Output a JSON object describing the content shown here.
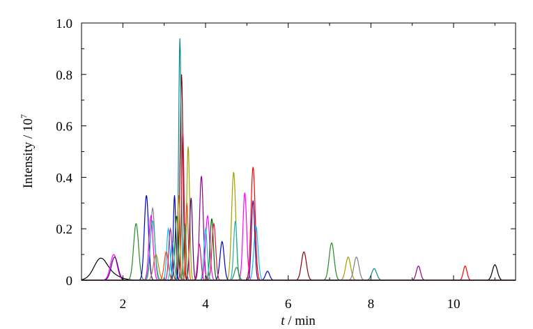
{
  "chart_data": {
    "type": "line",
    "xlabel_italic": "t",
    "xlabel_rest": " / min",
    "ylabel_base": "Intensity / 10",
    "ylabel_exp": "7",
    "xlim": [
      1.0,
      11.5
    ],
    "ylim": [
      0.0,
      1.0
    ],
    "x_ticks": [
      2,
      4,
      6,
      8,
      10
    ],
    "x_tick_labels": [
      "2",
      "4",
      "6",
      "8",
      "10"
    ],
    "y_ticks": [
      0.0,
      0.2,
      0.4,
      0.6,
      0.8,
      1.0
    ],
    "y_tick_labels": [
      "0",
      "0.2",
      "0.4",
      "0.6",
      "0.8",
      "1.0"
    ],
    "grid": false,
    "legend": "none",
    "series": [
      {
        "color": "#000000",
        "peaks": [
          [
            1.45,
            0.06,
            0.15
          ],
          [
            1.6,
            0.03,
            0.25
          ],
          [
            11.0,
            0.06,
            0.06
          ]
        ]
      },
      {
        "color": "#8b0000",
        "peaks": [
          [
            3.42,
            0.8,
            0.035
          ],
          [
            6.38,
            0.11,
            0.06
          ]
        ]
      },
      {
        "color": "#228b22",
        "peaks": [
          [
            2.32,
            0.22,
            0.06
          ],
          [
            7.05,
            0.145,
            0.06
          ]
        ]
      },
      {
        "color": "#ff0000",
        "peaks": [
          [
            5.15,
            0.44,
            0.05
          ],
          [
            10.28,
            0.055,
            0.045
          ]
        ]
      },
      {
        "color": "#a0a000",
        "peaks": [
          [
            3.58,
            0.52,
            0.035
          ],
          [
            4.68,
            0.42,
            0.05
          ],
          [
            7.45,
            0.09,
            0.06
          ]
        ]
      },
      {
        "color": "#808080",
        "peaks": [
          [
            2.72,
            0.28,
            0.05
          ],
          [
            7.65,
            0.09,
            0.06
          ]
        ]
      },
      {
        "color": "#008b8b",
        "peaks": [
          [
            3.38,
            0.94,
            0.03
          ],
          [
            8.08,
            0.045,
            0.06
          ]
        ]
      },
      {
        "color": "#8b008b",
        "peaks": [
          [
            3.9,
            0.405,
            0.045
          ],
          [
            9.15,
            0.055,
            0.05
          ]
        ]
      },
      {
        "color": "#0000cd",
        "peaks": [
          [
            2.57,
            0.33,
            0.05
          ],
          [
            3.25,
            0.33,
            0.03
          ],
          [
            4.4,
            0.15,
            0.05
          ],
          [
            5.5,
            0.035,
            0.05
          ]
        ]
      },
      {
        "color": "#ff00ff",
        "peaks": [
          [
            1.78,
            0.1,
            0.08
          ],
          [
            2.68,
            0.25,
            0.05
          ],
          [
            4.05,
            0.25,
            0.05
          ],
          [
            4.95,
            0.34,
            0.045
          ]
        ]
      },
      {
        "color": "#00bfff",
        "peaks": [
          [
            3.1,
            0.2,
            0.04
          ],
          [
            5.22,
            0.21,
            0.05
          ]
        ]
      },
      {
        "color": "#20b2aa",
        "peaks": [
          [
            2.72,
            0.23,
            0.06
          ],
          [
            4.72,
            0.23,
            0.04
          ]
        ]
      },
      {
        "color": "#006400",
        "peaks": [
          [
            3.3,
            0.25,
            0.04
          ],
          [
            4.15,
            0.24,
            0.04
          ]
        ]
      },
      {
        "color": "#dc143c",
        "peaks": [
          [
            3.45,
            0.58,
            0.03
          ],
          [
            4.2,
            0.22,
            0.045
          ]
        ]
      },
      {
        "color": "#4b0082",
        "peaks": [
          [
            1.8,
            0.09,
            0.08
          ],
          [
            3.65,
            0.32,
            0.035
          ],
          [
            5.15,
            0.31,
            0.04
          ]
        ]
      },
      {
        "color": "#b8860b",
        "peaks": [
          [
            2.8,
            0.1,
            0.06
          ],
          [
            3.35,
            0.33,
            0.03
          ]
        ]
      },
      {
        "color": "#ff4500",
        "peaks": [
          [
            3.05,
            0.11,
            0.05
          ],
          [
            3.55,
            0.3,
            0.03
          ]
        ]
      },
      {
        "color": "#00ced1",
        "peaks": [
          [
            3.2,
            0.15,
            0.04
          ],
          [
            4.0,
            0.2,
            0.04
          ]
        ]
      },
      {
        "color": "#2e8b57",
        "peaks": [
          [
            3.5,
            0.22,
            0.03
          ],
          [
            4.75,
            0.05,
            0.05
          ]
        ]
      },
      {
        "color": "#c71585",
        "peaks": [
          [
            3.15,
            0.2,
            0.04
          ],
          [
            3.85,
            0.14,
            0.04
          ]
        ]
      }
    ]
  }
}
